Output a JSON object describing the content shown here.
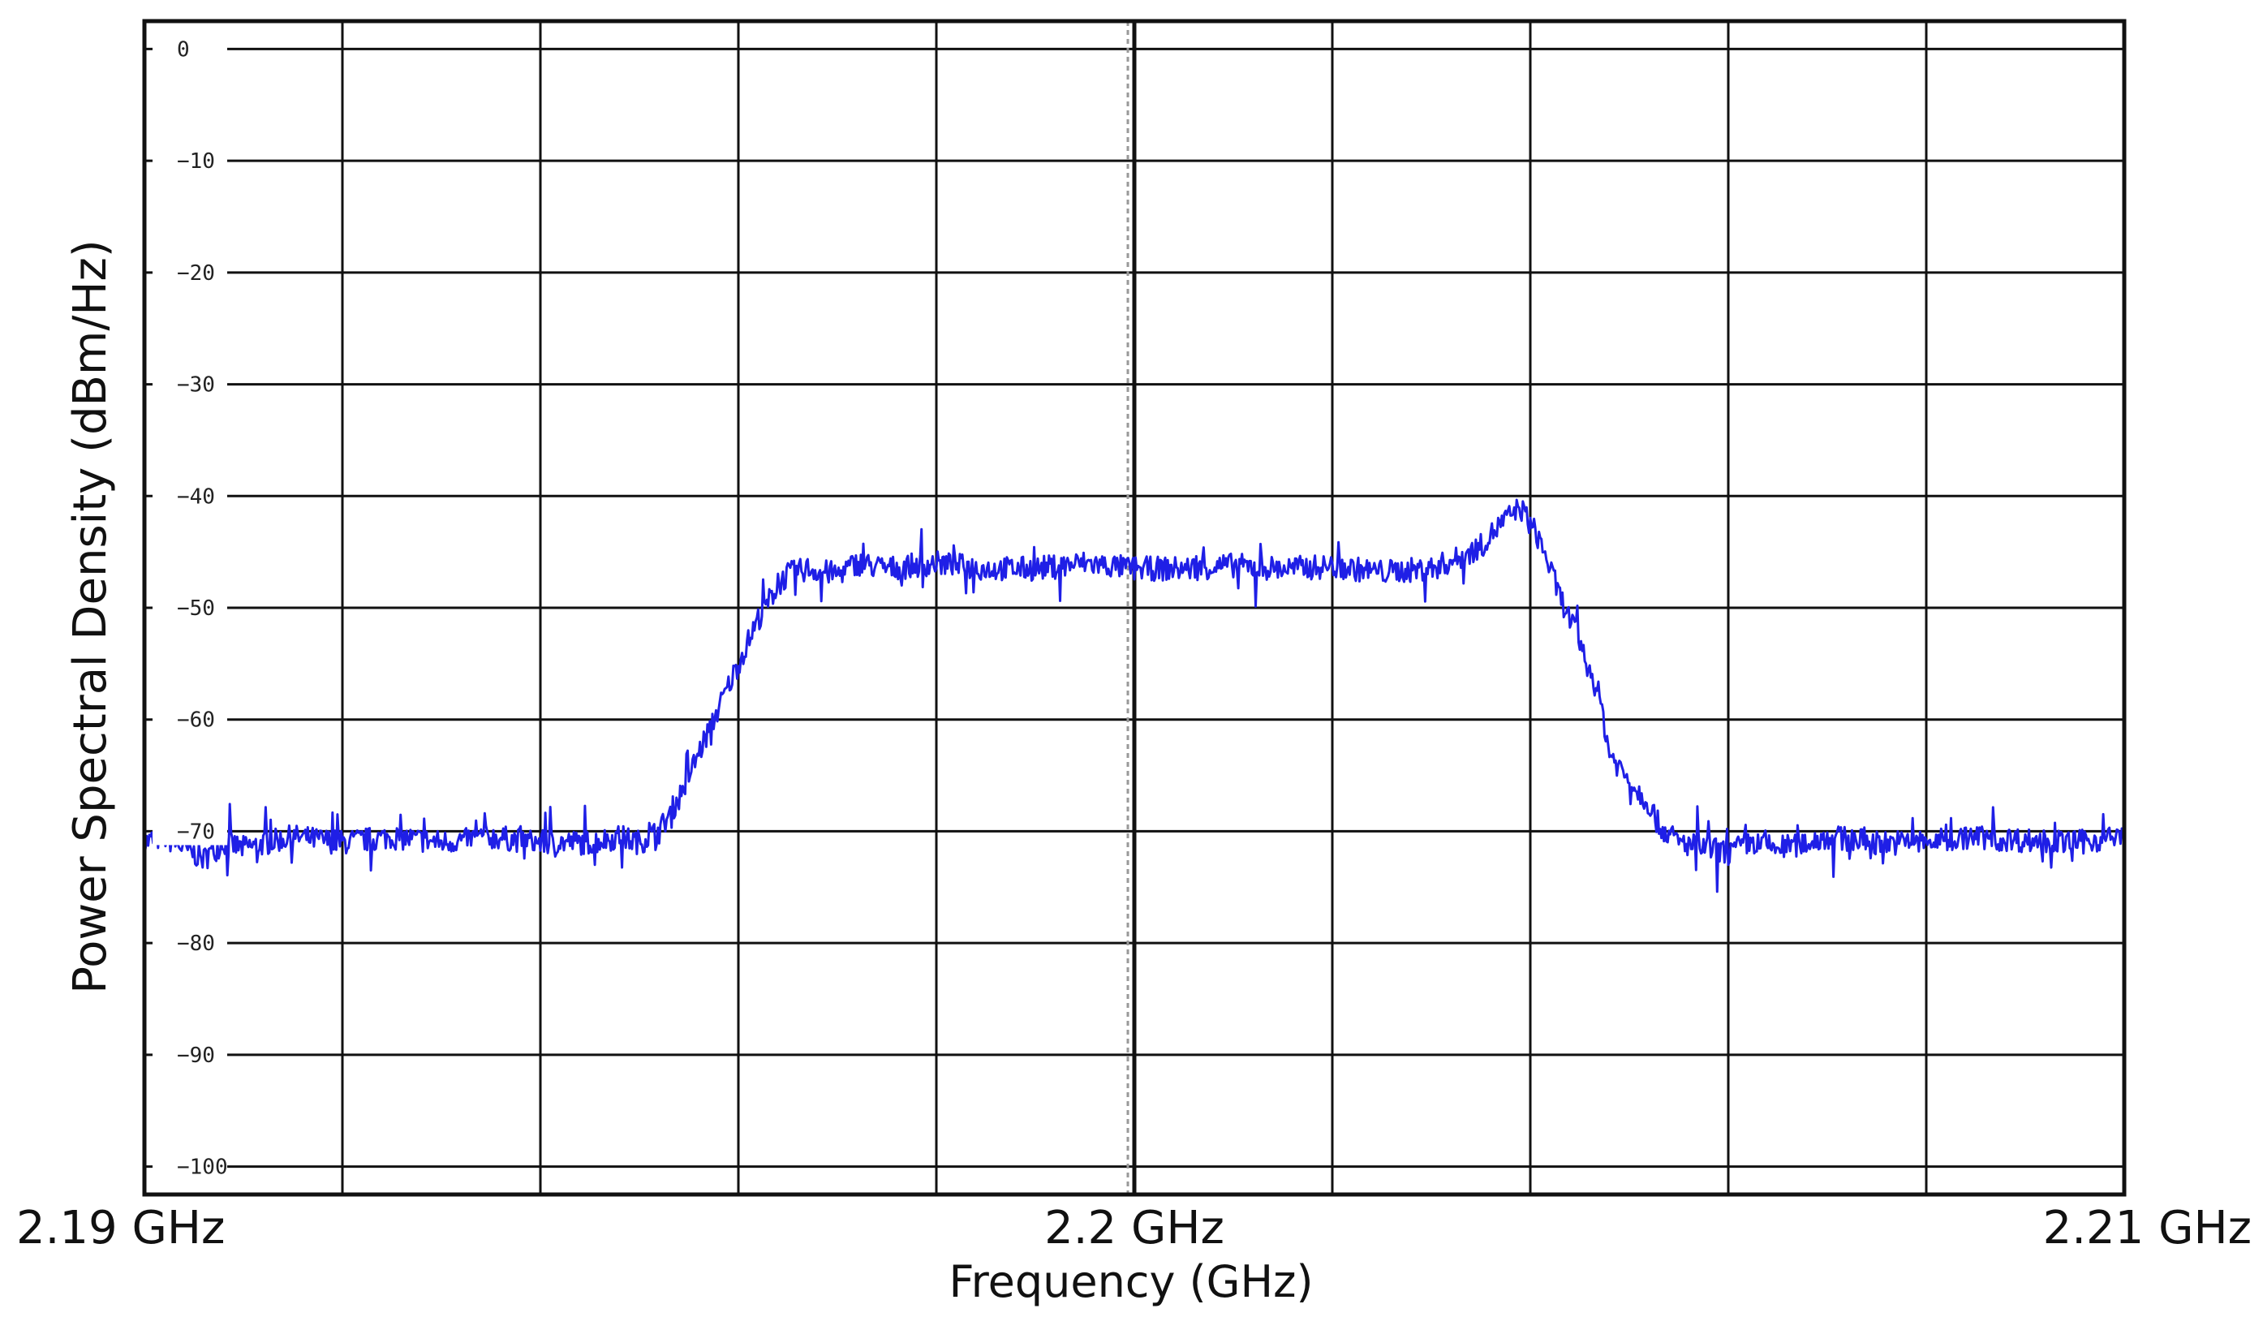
{
  "chart_data": {
    "type": "line",
    "title": "",
    "xlabel": "Frequency (GHz)",
    "ylabel": "Power Spectral Density (dBm/Hz)",
    "xlim": [
      2.19,
      2.21
    ],
    "ylim": [
      -102.5,
      2.5
    ],
    "x_ticks": [
      {
        "value": 2.19,
        "label": "2.19 GHz"
      },
      {
        "value": 2.2,
        "label": "2.2 GHz"
      },
      {
        "value": 2.21,
        "label": "2.21 GHz"
      }
    ],
    "y_ticks": [
      0,
      -10,
      -20,
      -30,
      -40,
      -50,
      -60,
      -70,
      -80,
      -90,
      -100
    ],
    "y_tick_labels": [
      "0",
      "−10",
      "−20",
      "−30",
      "−40",
      "−50",
      "−60",
      "−70",
      "−80",
      "−90",
      "−100"
    ],
    "grid": true,
    "series": [
      {
        "color": "#1f1fe6",
        "x": [
          2.19,
          2.1902,
          2.1904,
          2.1906,
          2.1908,
          2.191,
          2.1915,
          2.192,
          2.1925,
          2.193,
          2.1935,
          2.194,
          2.1945,
          2.1948,
          2.195,
          2.1952,
          2.1954,
          2.1956,
          2.1958,
          2.196,
          2.1962,
          2.1964,
          2.1965,
          2.1967,
          2.197,
          2.1972,
          2.1975,
          2.198,
          2.1985,
          2.199,
          2.1995,
          2.2,
          2.2005,
          2.201,
          2.2015,
          2.202,
          2.2025,
          2.203,
          2.2033,
          2.2035,
          2.2037,
          2.2039,
          2.2041,
          2.2043,
          2.2045,
          2.2047,
          2.2048,
          2.205,
          2.2052,
          2.2053,
          2.2055,
          2.2058,
          2.206,
          2.2062,
          2.2065,
          2.2068,
          2.207,
          2.2075,
          2.208,
          2.2085,
          2.209,
          2.2095,
          2.21
        ],
        "y": [
          -71,
          -70.5,
          -71.5,
          -72.5,
          -71,
          -71.5,
          -70.5,
          -71,
          -70.5,
          -71,
          -70.5,
          -71,
          -71,
          -70.5,
          -71,
          -70,
          -67,
          -63,
          -59,
          -55,
          -51,
          -48,
          -47,
          -46.5,
          -47,
          -46,
          -46.5,
          -46,
          -46.5,
          -46.5,
          -46,
          -46.5,
          -46.5,
          -46.2,
          -46.5,
          -46.3,
          -46.8,
          -46.5,
          -45.5,
          -44.5,
          -42.5,
          -41,
          -44,
          -49,
          -53,
          -58,
          -63,
          -65.5,
          -67.5,
          -69.5,
          -71,
          -71.5,
          -72,
          -71,
          -71.5,
          -71,
          -70.5,
          -71,
          -71,
          -70.5,
          -70.8,
          -71,
          -70.5
        ]
      }
    ]
  }
}
